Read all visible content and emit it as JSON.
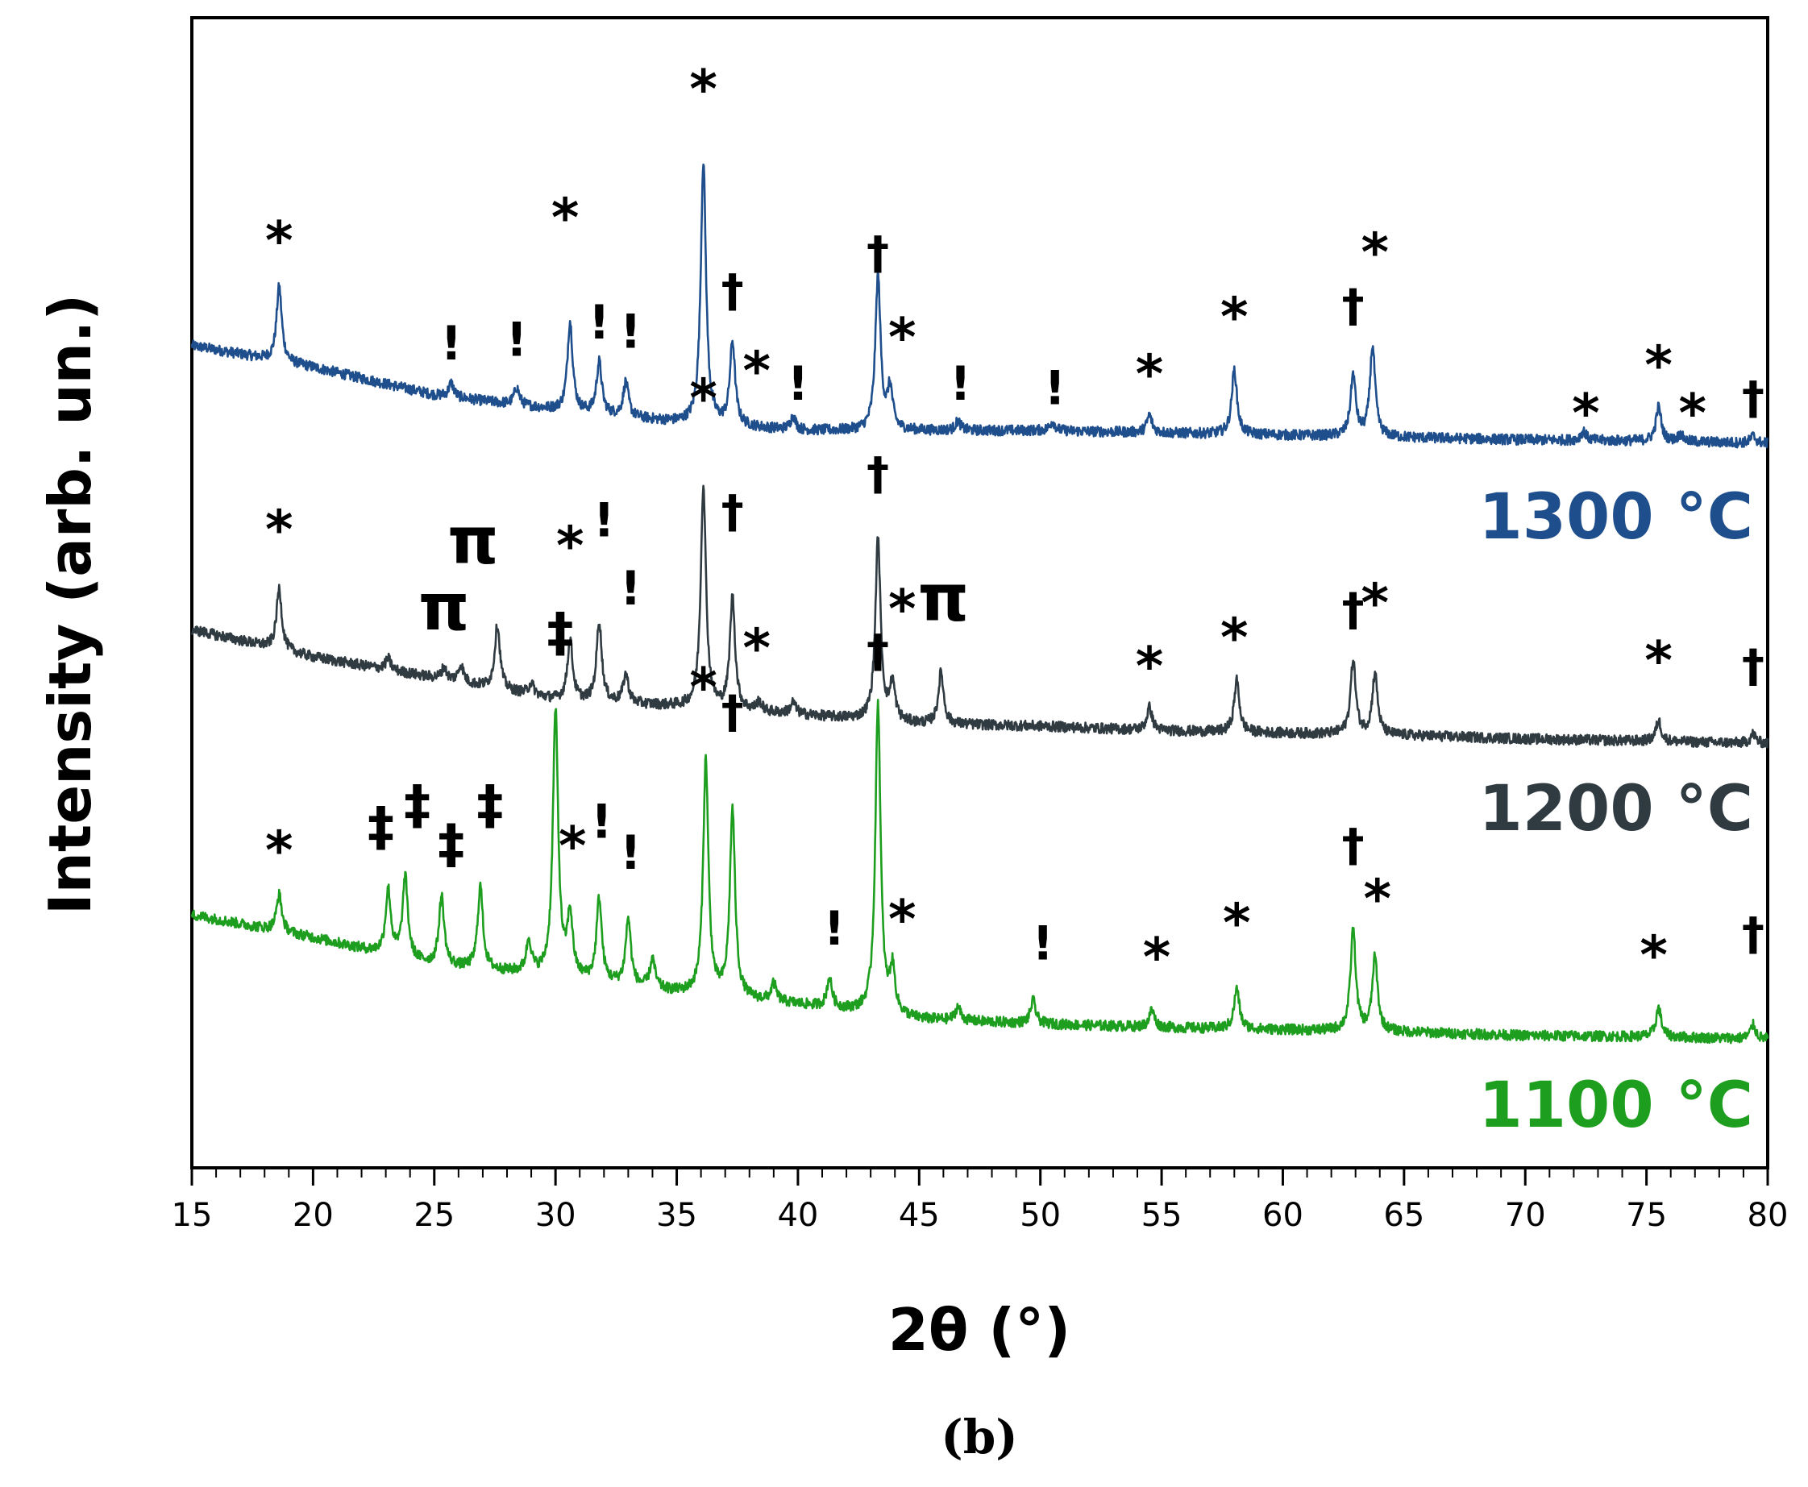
{
  "chart_data": {
    "type": "line",
    "xlabel": "2θ (°)",
    "ylabel": "Intensity (arb. un.)",
    "panel_label": "(b)",
    "xlim": [
      15,
      80
    ],
    "ylim": [
      0,
      100
    ],
    "x_ticks": [
      "15",
      "20",
      "25",
      "30",
      "35",
      "40",
      "45",
      "50",
      "55",
      "60",
      "65",
      "70",
      "75",
      "80"
    ],
    "y_ticks": false,
    "series": [
      {
        "name": "1300 °C",
        "color": "#1f4e8c",
        "baseline": [
          [
            15,
            71.5
          ],
          [
            20,
            69.6
          ],
          [
            25,
            67.2
          ],
          [
            30,
            65.9
          ],
          [
            35,
            64.8
          ],
          [
            40,
            64.1
          ],
          [
            45,
            64.1
          ],
          [
            50,
            64.1
          ],
          [
            55,
            63.9
          ],
          [
            60,
            63.7
          ],
          [
            65,
            63.5
          ],
          [
            70,
            63.3
          ],
          [
            75,
            63.2
          ],
          [
            80,
            63.0
          ]
        ],
        "peaks": [
          [
            18.6,
            6.5
          ],
          [
            25.7,
            1.2
          ],
          [
            28.4,
            1.5
          ],
          [
            30.6,
            7.8
          ],
          [
            31.8,
            4.5
          ],
          [
            32.9,
            3.0
          ],
          [
            36.1,
            22.8
          ],
          [
            37.3,
            7.2
          ],
          [
            39.8,
            1.2
          ],
          [
            43.3,
            13.4
          ],
          [
            43.8,
            3.5
          ],
          [
            46.6,
            0.8
          ],
          [
            50.5,
            0.8
          ],
          [
            54.5,
            1.5
          ],
          [
            58.0,
            5.6
          ],
          [
            62.9,
            5.3
          ],
          [
            63.7,
            7.8
          ],
          [
            72.4,
            0.8
          ],
          [
            75.5,
            3.0
          ],
          [
            76.4,
            0.6
          ],
          [
            79.4,
            0.6
          ]
        ],
        "markers": [
          {
            "x": 18.6,
            "y": 79.0,
            "text": "*",
            "size": 66
          },
          {
            "x": 25.7,
            "y": 70.3,
            "text": "!",
            "size": 58
          },
          {
            "x": 28.4,
            "y": 70.6,
            "text": "!",
            "size": 58
          },
          {
            "x": 30.4,
            "y": 81.0,
            "text": "*",
            "size": 66
          },
          {
            "x": 31.8,
            "y": 72.1,
            "text": "!",
            "size": 58
          },
          {
            "x": 33.1,
            "y": 71.3,
            "text": "!",
            "size": 58
          },
          {
            "x": 36.1,
            "y": 92.2,
            "text": "*",
            "size": 66
          },
          {
            "x": 37.3,
            "y": 74.9,
            "text": "†",
            "size": 56
          },
          {
            "x": 38.3,
            "y": 67.7,
            "text": "*",
            "size": 66
          },
          {
            "x": 40.0,
            "y": 66.8,
            "text": "!",
            "size": 58
          },
          {
            "x": 43.3,
            "y": 78.2,
            "text": "†",
            "size": 56
          },
          {
            "x": 44.3,
            "y": 70.6,
            "text": "*",
            "size": 66
          },
          {
            "x": 46.7,
            "y": 66.8,
            "text": "!",
            "size": 58
          },
          {
            "x": 50.6,
            "y": 66.4,
            "text": "!",
            "size": 58
          },
          {
            "x": 54.5,
            "y": 67.4,
            "text": "*",
            "size": 66
          },
          {
            "x": 58.0,
            "y": 72.4,
            "text": "*",
            "size": 66
          },
          {
            "x": 62.9,
            "y": 73.6,
            "text": "†",
            "size": 56
          },
          {
            "x": 63.8,
            "y": 78.0,
            "text": "*",
            "size": 66
          },
          {
            "x": 72.5,
            "y": 64.0,
            "text": "*",
            "size": 66
          },
          {
            "x": 75.5,
            "y": 68.2,
            "text": "*",
            "size": 66
          },
          {
            "x": 76.9,
            "y": 64.0,
            "text": "*",
            "size": 66
          },
          {
            "x": 79.4,
            "y": 65.6,
            "text": "†",
            "size": 56
          }
        ]
      },
      {
        "name": "1200 °C",
        "color": "#2f3a41",
        "baseline": [
          [
            15,
            46.8
          ],
          [
            20,
            44.4
          ],
          [
            25,
            42.6
          ],
          [
            30,
            40.7
          ],
          [
            35,
            40.1
          ],
          [
            40,
            39.4
          ],
          [
            45,
            38.6
          ],
          [
            50,
            38.4
          ],
          [
            55,
            38.0
          ],
          [
            60,
            37.8
          ],
          [
            65,
            37.6
          ],
          [
            70,
            37.3
          ],
          [
            75,
            37.1
          ],
          [
            80,
            36.9
          ]
        ],
        "peaks": [
          [
            18.6,
            5.3
          ],
          [
            23.1,
            1.0
          ],
          [
            25.4,
            1.0
          ],
          [
            26.1,
            1.5
          ],
          [
            27.6,
            5.6
          ],
          [
            29.0,
            1.0
          ],
          [
            30.6,
            5.3
          ],
          [
            31.8,
            7.0
          ],
          [
            32.9,
            2.5
          ],
          [
            36.1,
            19.4
          ],
          [
            37.3,
            9.7
          ],
          [
            38.4,
            0.8
          ],
          [
            39.8,
            1.0
          ],
          [
            43.3,
            15.8
          ],
          [
            43.9,
            3.2
          ],
          [
            45.9,
            4.5
          ],
          [
            54.5,
            2.0
          ],
          [
            58.1,
            4.5
          ],
          [
            62.9,
            6.4
          ],
          [
            63.8,
            5.3
          ],
          [
            75.5,
            1.8
          ],
          [
            79.4,
            0.8
          ]
        ],
        "markers": [
          {
            "x": 18.6,
            "y": 53.9,
            "text": "*",
            "size": 66
          },
          {
            "x": 25.4,
            "y": 46.8,
            "text": "π",
            "size": 80
          },
          {
            "x": 26.6,
            "y": 52.6,
            "text": "π",
            "size": 80
          },
          {
            "x": 30.6,
            "y": 52.5,
            "text": "*",
            "size": 66
          },
          {
            "x": 32.0,
            "y": 54.9,
            "text": "!",
            "size": 58
          },
          {
            "x": 33.1,
            "y": 49.0,
            "text": "!",
            "size": 58
          },
          {
            "x": 36.1,
            "y": 65.3,
            "text": "*",
            "size": 66
          },
          {
            "x": 37.3,
            "y": 55.7,
            "text": "†",
            "size": 56
          },
          {
            "x": 38.3,
            "y": 43.6,
            "text": "*",
            "size": 66
          },
          {
            "x": 43.3,
            "y": 59.0,
            "text": "†",
            "size": 56
          },
          {
            "x": 44.3,
            "y": 47.0,
            "text": "*",
            "size": 66
          },
          {
            "x": 46.0,
            "y": 47.6,
            "text": "π",
            "size": 80
          },
          {
            "x": 54.5,
            "y": 42.0,
            "text": "*",
            "size": 66
          },
          {
            "x": 58.0,
            "y": 44.5,
            "text": "*",
            "size": 66
          },
          {
            "x": 62.9,
            "y": 47.2,
            "text": "†",
            "size": 56
          },
          {
            "x": 63.8,
            "y": 47.5,
            "text": "*",
            "size": 66
          },
          {
            "x": 75.5,
            "y": 42.5,
            "text": "*",
            "size": 66
          },
          {
            "x": 79.4,
            "y": 42.3,
            "text": "†",
            "size": 56
          }
        ]
      },
      {
        "name": "1100 °C",
        "color": "#1e9e1e",
        "baseline": [
          [
            15,
            22.0
          ],
          [
            20,
            20.0
          ],
          [
            25,
            17.6
          ],
          [
            30,
            16.6
          ],
          [
            35,
            15.2
          ],
          [
            40,
            14.2
          ],
          [
            45,
            12.9
          ],
          [
            50,
            12.5
          ],
          [
            55,
            12.2
          ],
          [
            60,
            12.0
          ],
          [
            65,
            11.8
          ],
          [
            70,
            11.5
          ],
          [
            75,
            11.4
          ],
          [
            80,
            11.2
          ]
        ],
        "peaks": [
          [
            18.6,
            3.2
          ],
          [
            23.1,
            5.6
          ],
          [
            23.8,
            7.0
          ],
          [
            25.3,
            6.0
          ],
          [
            26.9,
            7.2
          ],
          [
            28.9,
            2.8
          ],
          [
            30.0,
            23.0
          ],
          [
            30.6,
            5.3
          ],
          [
            31.8,
            7.2
          ],
          [
            33.0,
            5.8
          ],
          [
            34.0,
            2.5
          ],
          [
            36.2,
            20.4
          ],
          [
            37.3,
            16.3
          ],
          [
            39.0,
            1.5
          ],
          [
            41.3,
            2.5
          ],
          [
            43.3,
            27.0
          ],
          [
            43.9,
            3.8
          ],
          [
            46.6,
            1.2
          ],
          [
            49.7,
            2.0
          ],
          [
            54.6,
            1.5
          ],
          [
            58.1,
            3.5
          ],
          [
            62.9,
            8.8
          ],
          [
            63.8,
            6.4
          ],
          [
            75.5,
            2.5
          ],
          [
            79.4,
            1.2
          ]
        ],
        "markers": [
          {
            "x": 18.6,
            "y": 26.0,
            "text": "*",
            "size": 66
          },
          {
            "x": 22.8,
            "y": 28.1,
            "text": "‡",
            "size": 66
          },
          {
            "x": 24.3,
            "y": 30.0,
            "text": "‡",
            "size": 66
          },
          {
            "x": 25.7,
            "y": 26.6,
            "text": "‡",
            "size": 66
          },
          {
            "x": 27.3,
            "y": 30.0,
            "text": "‡",
            "size": 66
          },
          {
            "x": 30.2,
            "y": 45.0,
            "text": "‡",
            "size": 66
          },
          {
            "x": 30.7,
            "y": 26.4,
            "text": "*",
            "size": 66
          },
          {
            "x": 31.9,
            "y": 28.7,
            "text": "!",
            "size": 58
          },
          {
            "x": 33.1,
            "y": 26.0,
            "text": "!",
            "size": 58
          },
          {
            "x": 36.1,
            "y": 40.2,
            "text": "*",
            "size": 66
          },
          {
            "x": 37.3,
            "y": 38.3,
            "text": "†",
            "size": 56
          },
          {
            "x": 41.5,
            "y": 19.4,
            "text": "!",
            "size": 58
          },
          {
            "x": 43.3,
            "y": 43.6,
            "text": "†",
            "size": 56
          },
          {
            "x": 44.3,
            "y": 20.0,
            "text": "*",
            "size": 66
          },
          {
            "x": 50.1,
            "y": 18.1,
            "text": "!",
            "size": 58
          },
          {
            "x": 54.8,
            "y": 16.7,
            "text": "*",
            "size": 66
          },
          {
            "x": 58.1,
            "y": 19.7,
            "text": "*",
            "size": 66
          },
          {
            "x": 62.9,
            "y": 26.7,
            "text": "†",
            "size": 56
          },
          {
            "x": 63.9,
            "y": 21.8,
            "text": "*",
            "size": 66
          },
          {
            "x": 75.3,
            "y": 16.9,
            "text": "*",
            "size": 66
          },
          {
            "x": 79.4,
            "y": 19.0,
            "text": "†",
            "size": 56
          }
        ]
      }
    ]
  }
}
